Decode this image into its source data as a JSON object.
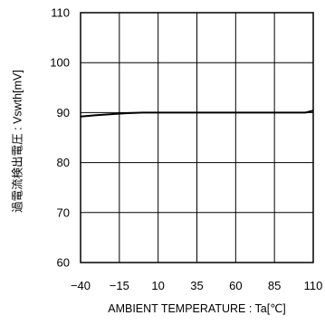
{
  "chart_data": {
    "type": "line",
    "title": "",
    "xlabel": "AMBIENT TEMPERATURE : Ta[℃]",
    "ylabel": "過電流検出電圧 : Vswth[mV]",
    "xlim": [
      -40,
      110
    ],
    "ylim": [
      60,
      110
    ],
    "x_ticks": [
      -40,
      -15,
      10,
      35,
      60,
      85,
      110
    ],
    "x_tick_labels": [
      "−40",
      "−15",
      "10",
      "35",
      "60",
      "85",
      "110"
    ],
    "y_ticks": [
      60,
      70,
      80,
      90,
      100,
      110
    ],
    "y_tick_labels": [
      "60",
      "70",
      "80",
      "90",
      "100",
      "110"
    ],
    "grid": true,
    "series": [
      {
        "x": [
          -40,
          -30,
          -20,
          -10,
          0,
          10,
          20,
          30,
          40,
          50,
          60,
          70,
          80,
          90,
          100,
          105,
          110
        ],
        "y": [
          89.2,
          89.5,
          89.7,
          89.9,
          90.0,
          90.0,
          90.0,
          90.0,
          90.0,
          90.0,
          90.0,
          90.0,
          90.0,
          90.0,
          90.0,
          90.0,
          90.4
        ]
      }
    ],
    "colors": {
      "line": "#000000",
      "grid": "#000000",
      "axis": "#000000"
    }
  }
}
